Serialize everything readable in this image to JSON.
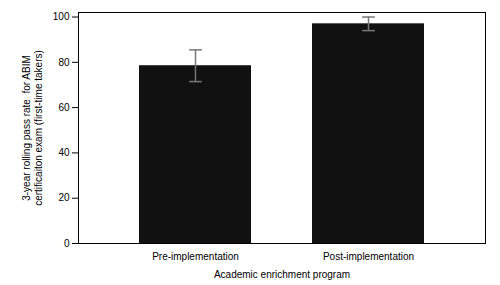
{
  "chart_data": {
    "type": "bar",
    "categories": [
      "Pre-implementation",
      "Post-implementation"
    ],
    "values": [
      78.5,
      97.0
    ],
    "errors": [
      7.0,
      3.0
    ],
    "color": "#111111",
    "xlabel": "Academic enrichment program",
    "ylabel": [
      "3-year rolling pass rate  for ABIM",
      "certificaiton exam (first-time takers)"
    ],
    "ylim": [
      0,
      102
    ],
    "yticks": [
      0,
      20,
      40,
      60,
      80,
      100
    ],
    "grid": false
  }
}
